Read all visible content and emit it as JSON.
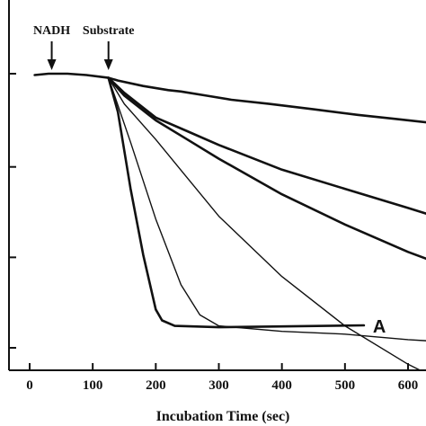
{
  "chart_data": {
    "type": "line",
    "title": "",
    "xlabel": "Incubation Time (sec)",
    "ylabel": "",
    "xlim": [
      -30,
      670
    ],
    "ylim": [
      -0.1,
      1.25
    ],
    "x_ticks": [
      0,
      100,
      200,
      300,
      400,
      500,
      600
    ],
    "x_tick_labels": [
      "0",
      "100",
      "200",
      "300",
      "400",
      "500",
      "600"
    ],
    "y_ticks": [
      0.0,
      0.33,
      0.66,
      1.0
    ],
    "grid": false,
    "annotations": [
      {
        "text": "NADH",
        "x": 35
      },
      {
        "text": "Substrate",
        "x": 125
      }
    ],
    "series": [
      {
        "label": "",
        "thick": true,
        "x": [
          8,
          30,
          60,
          90,
          125,
          140,
          180,
          220,
          240,
          280,
          320,
          380,
          450,
          520,
          580,
          640,
          670
        ],
        "y": [
          0.995,
          1.0,
          1.0,
          0.995,
          0.985,
          0.975,
          0.955,
          0.94,
          0.935,
          0.92,
          0.905,
          0.89,
          0.87,
          0.85,
          0.835,
          0.82,
          0.815
        ]
      },
      {
        "label": "",
        "thick": true,
        "x": [
          125,
          150,
          200,
          250,
          300,
          400,
          500,
          600,
          670
        ],
        "y": [
          0.985,
          0.93,
          0.84,
          0.79,
          0.74,
          0.65,
          0.58,
          0.51,
          0.46
        ]
      },
      {
        "label": "",
        "thick": true,
        "x": [
          125,
          150,
          200,
          250,
          300,
          400,
          500,
          600,
          670
        ],
        "y": [
          0.985,
          0.92,
          0.83,
          0.76,
          0.69,
          0.56,
          0.45,
          0.35,
          0.29
        ]
      },
      {
        "label": "",
        "thick": false,
        "x": [
          125,
          150,
          200,
          250,
          300,
          400,
          500,
          600,
          670
        ],
        "y": [
          0.985,
          0.89,
          0.76,
          0.62,
          0.48,
          0.26,
          0.08,
          -0.06,
          -0.14
        ]
      },
      {
        "label": "",
        "thick": false,
        "x": [
          125,
          160,
          200,
          240,
          270,
          300,
          400,
          500,
          600,
          670
        ],
        "y": [
          0.985,
          0.75,
          0.47,
          0.23,
          0.12,
          0.08,
          0.06,
          0.05,
          0.03,
          0.02
        ]
      },
      {
        "label": "A",
        "thick": true,
        "x": [
          125,
          140,
          160,
          180,
          200,
          210,
          230,
          300,
          400,
          530
        ],
        "y": [
          0.985,
          0.86,
          0.58,
          0.34,
          0.14,
          0.1,
          0.08,
          0.075,
          0.078,
          0.082
        ]
      }
    ]
  }
}
